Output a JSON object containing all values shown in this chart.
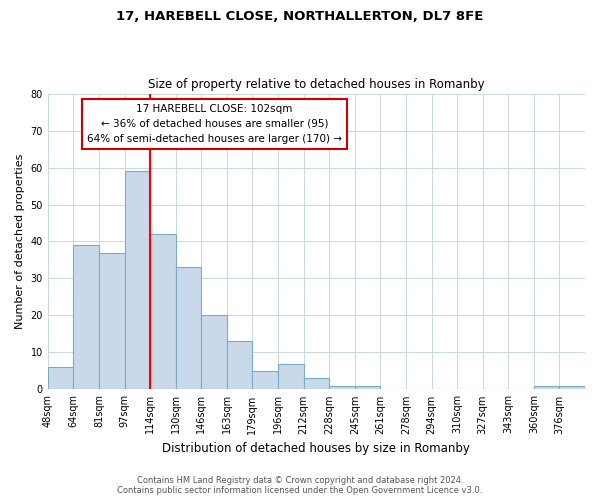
{
  "title1": "17, HAREBELL CLOSE, NORTHALLERTON, DL7 8FE",
  "title2": "Size of property relative to detached houses in Romanby",
  "xlabel": "Distribution of detached houses by size in Romanby",
  "ylabel": "Number of detached properties",
  "bin_labels": [
    "48sqm",
    "64sqm",
    "81sqm",
    "97sqm",
    "114sqm",
    "130sqm",
    "146sqm",
    "163sqm",
    "179sqm",
    "196sqm",
    "212sqm",
    "228sqm",
    "245sqm",
    "261sqm",
    "278sqm",
    "294sqm",
    "310sqm",
    "327sqm",
    "343sqm",
    "360sqm",
    "376sqm"
  ],
  "bar_heights": [
    6,
    39,
    37,
    59,
    42,
    33,
    20,
    13,
    5,
    7,
    3,
    1,
    1,
    0,
    0,
    0,
    0,
    0,
    0,
    1,
    1
  ],
  "bar_color": "#c9d9ea",
  "bar_edge_color": "#7aaac8",
  "red_line_x": 4.0,
  "annotation_lines": [
    "17 HAREBELL CLOSE: 102sqm",
    "← 36% of detached houses are smaller (95)",
    "64% of semi-detached houses are larger (170) →"
  ],
  "annotation_box_color": "#ffffff",
  "annotation_box_edge_color": "#cc0000",
  "footer_line1": "Contains HM Land Registry data © Crown copyright and database right 2024.",
  "footer_line2": "Contains public sector information licensed under the Open Government Licence v3.0.",
  "ylim": [
    0,
    80
  ],
  "background_color": "#ffffff",
  "grid_color": "#c8d8e8"
}
